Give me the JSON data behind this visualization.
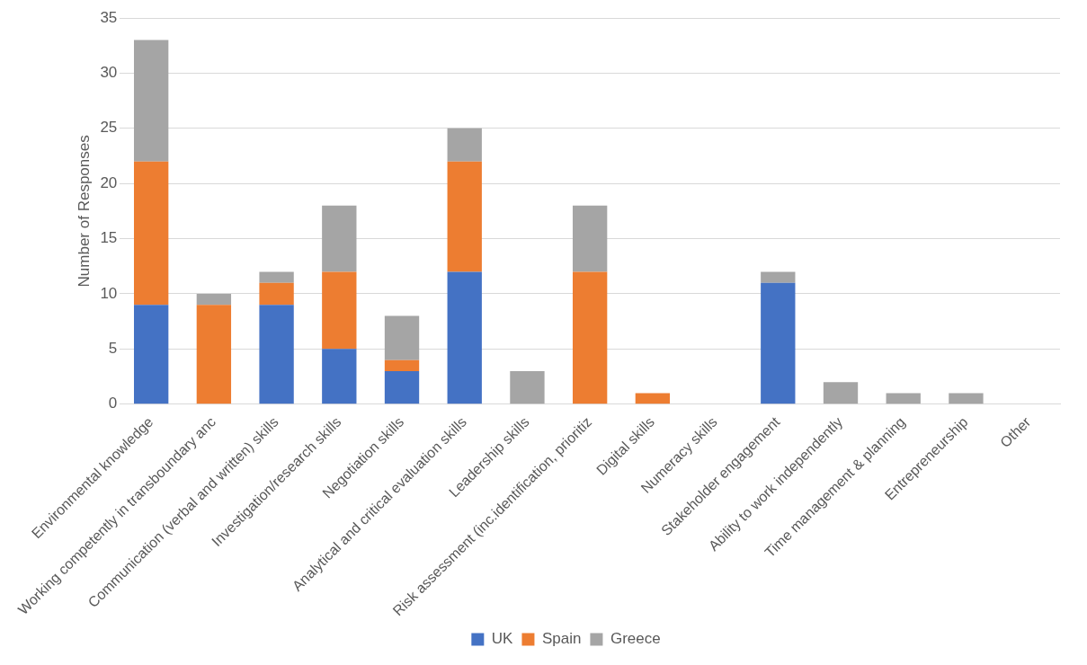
{
  "chart_data": {
    "type": "bar",
    "stacked": true,
    "ylabel": "Number of Responses",
    "categories": [
      "Environmental knowledge",
      "Working competently in transboundary anc",
      "Communication (verbal and written) skills",
      "Investigation/research skills",
      "Negotiation skills",
      "Analytical and critical evaluation skills",
      "Leadership skills",
      "Risk assessment (inc.identification, prioritiz",
      "Digital skills",
      "Numeracy skills",
      "Stakeholder engagement",
      "Ability to work independently",
      "Time management & planning",
      "Entrepreneurship",
      "Other"
    ],
    "series": [
      {
        "name": "UK",
        "color": "#4472c4",
        "values": [
          9,
          0,
          9,
          5,
          3,
          12,
          0,
          0,
          0,
          0,
          11,
          0,
          0,
          0,
          0
        ]
      },
      {
        "name": "Spain",
        "color": "#ed7d31",
        "values": [
          13,
          9,
          2,
          7,
          1,
          10,
          0,
          12,
          1,
          0,
          0,
          0,
          0,
          0,
          0
        ]
      },
      {
        "name": "Greece",
        "color": "#a5a5a5",
        "values": [
          11,
          1,
          1,
          6,
          4,
          3,
          3,
          6,
          0,
          0,
          1,
          2,
          1,
          1,
          0
        ]
      }
    ],
    "ylim": [
      0,
      35
    ],
    "yticks": [
      0,
      5,
      10,
      15,
      20,
      25,
      30,
      35
    ],
    "grid": "y",
    "legend": "bottom"
  }
}
